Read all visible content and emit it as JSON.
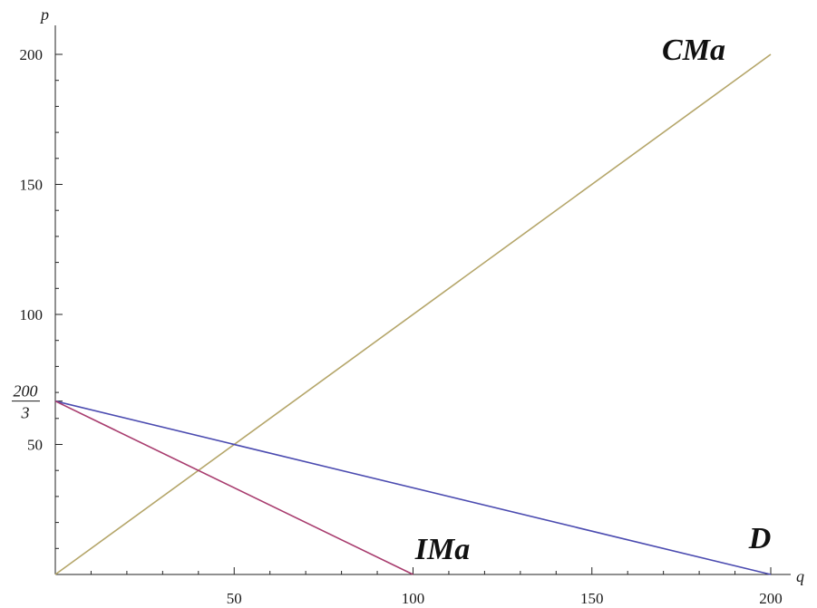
{
  "chart_data": {
    "type": "line",
    "xlabel": "q",
    "ylabel": "p",
    "xlim": [
      0,
      200
    ],
    "ylim": [
      0,
      200
    ],
    "x_ticks": [
      50,
      100,
      150,
      200
    ],
    "y_ticks": [
      50,
      100,
      150,
      200
    ],
    "y_special_tick": {
      "value": 66.667,
      "numerator": "200",
      "denominator": "3"
    },
    "grid": false,
    "series": [
      {
        "name": "CMa",
        "color": "#b5a66a",
        "points": [
          [
            0,
            0
          ],
          [
            200,
            200
          ]
        ]
      },
      {
        "name": "D",
        "color": "#4b4bb0",
        "points": [
          [
            0,
            66.667
          ],
          [
            200,
            0
          ]
        ]
      },
      {
        "name": "IMa",
        "color": "#a83c6e",
        "points": [
          [
            0,
            66.667
          ],
          [
            100,
            0
          ]
        ]
      }
    ]
  }
}
